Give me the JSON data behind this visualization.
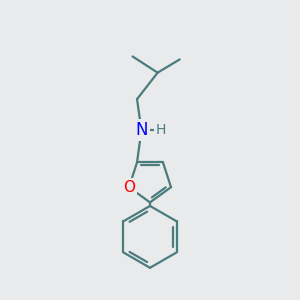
{
  "background_color": "#e8eaeb",
  "bond_color": "#4a7c7e",
  "N_color": "#0000ff",
  "O_color": "#ff0000",
  "line_width": 1.6,
  "font_size": 10,
  "figsize": [
    3.0,
    3.0
  ],
  "dpi": 100,
  "xlim": [
    0,
    10
  ],
  "ylim": [
    0,
    10
  ]
}
